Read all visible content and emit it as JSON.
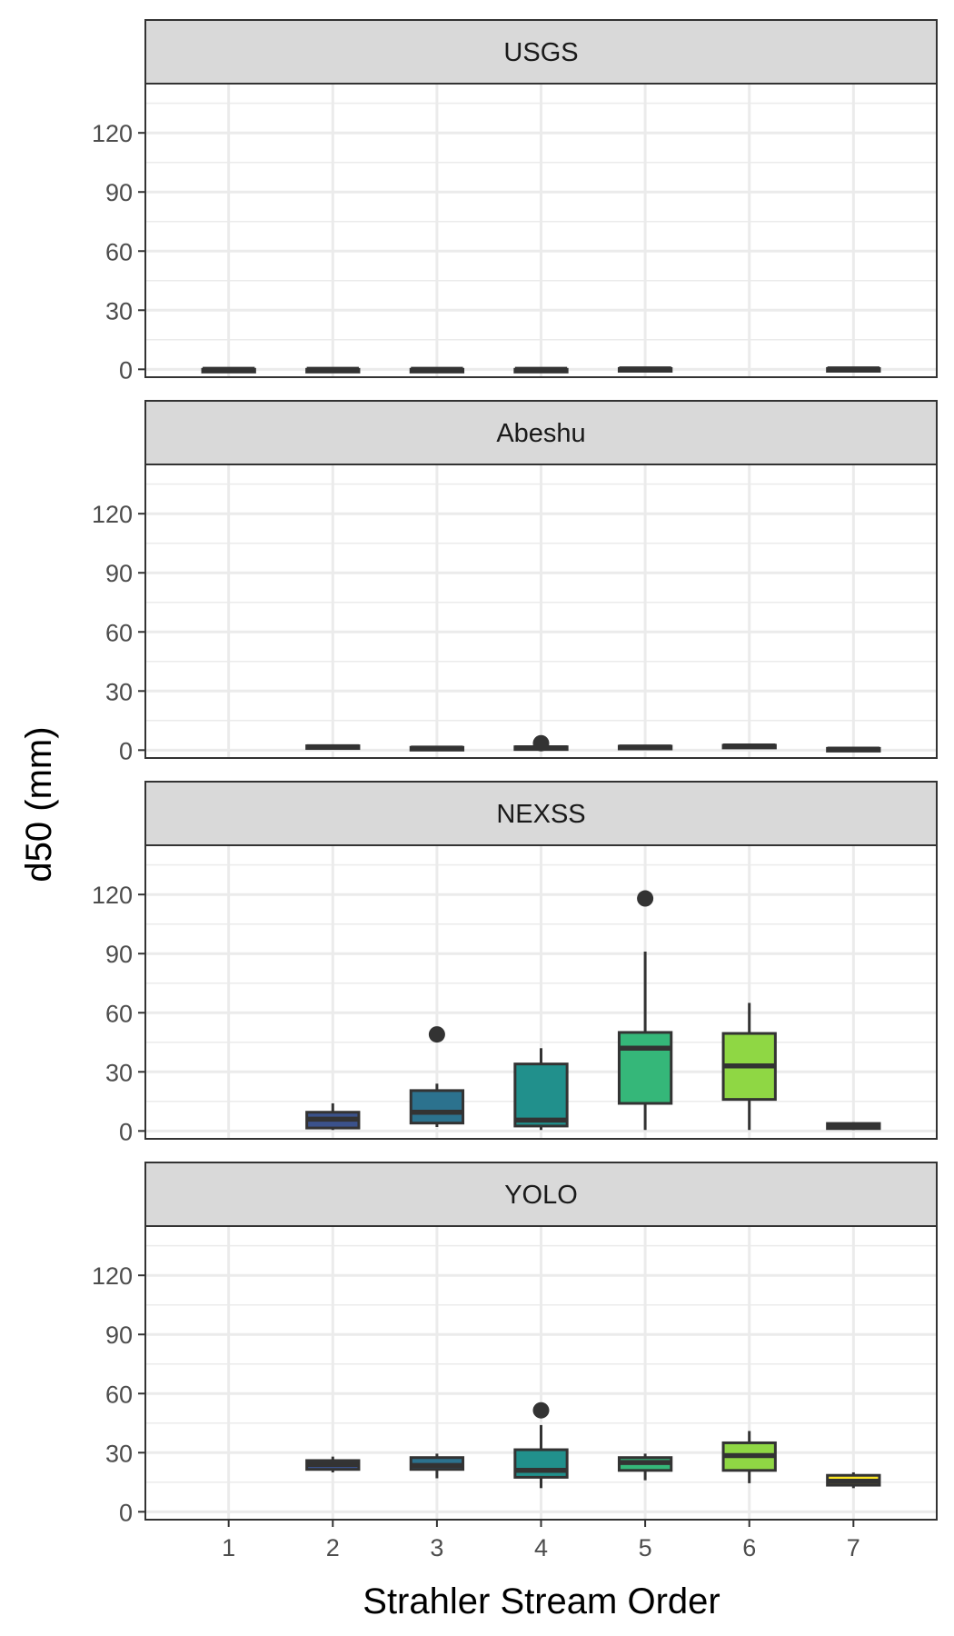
{
  "chart_data": {
    "type": "boxplot",
    "xlabel": "Strahler Stream Order",
    "ylabel": "d50 (mm)",
    "categories": [
      "1",
      "2",
      "3",
      "4",
      "5",
      "6",
      "7"
    ],
    "y_ticks": [
      0,
      30,
      60,
      90,
      120
    ],
    "ylim": [
      -4,
      145
    ],
    "grid": true,
    "facet_layout": "vertical",
    "colors": {
      "1": "#440154",
      "2": "#3B528B",
      "3": "#2C728E",
      "4": "#21908C",
      "5": "#35B779",
      "6": "#8FD744",
      "7": "#FDE725",
      "strip_fill": "#D9D9D9",
      "box_line": "#333333",
      "grid": "#EBEBEB",
      "panel_border": "#333333"
    },
    "panels": [
      {
        "name": "USGS",
        "boxes": [
          {
            "x": "1",
            "min": 0,
            "q1": 0,
            "median": 0,
            "q3": 0,
            "max": 0,
            "outliers": []
          },
          {
            "x": "2",
            "min": 0,
            "q1": 0,
            "median": 0,
            "q3": 0,
            "max": 0,
            "outliers": []
          },
          {
            "x": "3",
            "min": 0,
            "q1": 0,
            "median": 0,
            "q3": 0,
            "max": 0,
            "outliers": []
          },
          {
            "x": "4",
            "min": 0,
            "q1": 0,
            "median": 0,
            "q3": 0,
            "max": 0,
            "outliers": []
          },
          {
            "x": "5",
            "min": 0,
            "q1": 0,
            "median": 0.2,
            "q3": 0.4,
            "max": 0.5,
            "outliers": []
          },
          {
            "x": "7",
            "min": 0,
            "q1": 0,
            "median": 0.2,
            "q3": 0.4,
            "max": 0.5,
            "outliers": []
          }
        ]
      },
      {
        "name": "Abeshu",
        "boxes": [
          {
            "x": "2",
            "min": 1,
            "q1": 1.2,
            "median": 1.7,
            "q3": 2.2,
            "max": 2.5,
            "outliers": []
          },
          {
            "x": "3",
            "min": 0.5,
            "q1": 0.7,
            "median": 1,
            "q3": 1.4,
            "max": 1.7,
            "outliers": []
          },
          {
            "x": "4",
            "min": 0.5,
            "q1": 0.8,
            "median": 1.2,
            "q3": 1.7,
            "max": 2.2,
            "outliers": [
              3.5
            ]
          },
          {
            "x": "5",
            "min": 1,
            "q1": 1.2,
            "median": 1.6,
            "q3": 2,
            "max": 2.4,
            "outliers": []
          },
          {
            "x": "6",
            "min": 1.5,
            "q1": 1.7,
            "median": 2.1,
            "q3": 2.5,
            "max": 2.8,
            "outliers": []
          },
          {
            "x": "7",
            "min": 0,
            "q1": 0.2,
            "median": 0.5,
            "q3": 0.9,
            "max": 1.2,
            "outliers": []
          }
        ]
      },
      {
        "name": "NEXSS",
        "boxes": [
          {
            "x": "2",
            "min": 0.5,
            "q1": 1.5,
            "median": 6,
            "q3": 9.5,
            "max": 14,
            "outliers": []
          },
          {
            "x": "3",
            "min": 2,
            "q1": 4,
            "median": 9.5,
            "q3": 20.5,
            "max": 24,
            "outliers": [
              49
            ]
          },
          {
            "x": "4",
            "min": 0.5,
            "q1": 2.5,
            "median": 5.5,
            "q3": 34,
            "max": 42,
            "outliers": []
          },
          {
            "x": "5",
            "min": 0.5,
            "q1": 14,
            "median": 42,
            "q3": 50,
            "max": 91,
            "outliers": [
              118
            ]
          },
          {
            "x": "6",
            "min": 0.5,
            "q1": 16,
            "median": 33,
            "q3": 49.5,
            "max": 65,
            "outliers": []
          },
          {
            "x": "7",
            "min": 0.5,
            "q1": 1.2,
            "median": 2.5,
            "q3": 3.8,
            "max": 4.5,
            "outliers": []
          }
        ]
      },
      {
        "name": "YOLO",
        "boxes": [
          {
            "x": "2",
            "min": 20,
            "q1": 21.5,
            "median": 24,
            "q3": 26,
            "max": 28,
            "outliers": []
          },
          {
            "x": "3",
            "min": 17,
            "q1": 21.5,
            "median": 23.5,
            "q3": 27.5,
            "max": 29.5,
            "outliers": []
          },
          {
            "x": "4",
            "min": 12,
            "q1": 17.5,
            "median": 21,
            "q3": 31.5,
            "max": 44,
            "outliers": [
              51.5
            ]
          },
          {
            "x": "5",
            "min": 16,
            "q1": 21,
            "median": 25,
            "q3": 27.5,
            "max": 29.5,
            "outliers": []
          },
          {
            "x": "6",
            "min": 14.5,
            "q1": 21,
            "median": 28.5,
            "q3": 35,
            "max": 41,
            "outliers": []
          },
          {
            "x": "7",
            "min": 12,
            "q1": 13.5,
            "median": 15.5,
            "q3": 18.5,
            "max": 20,
            "outliers": []
          }
        ]
      }
    ]
  }
}
